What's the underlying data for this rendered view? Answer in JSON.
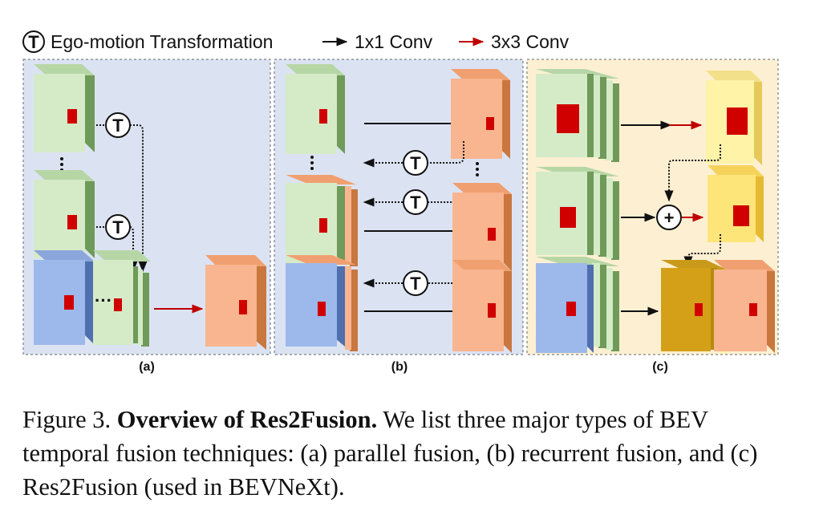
{
  "legend": {
    "t_symbol": "T",
    "ego_motion": "Ego-motion Transformation",
    "conv1x1": "1x1 Conv",
    "conv3x3": "3x3 Conv"
  },
  "panels": {
    "a": "(a)",
    "b": "(b)",
    "c": "(c)"
  },
  "colors": {
    "panel_blue_bg": "#dbe3f3",
    "panel_orange_bg": "#fdf0d2",
    "green_face": "#d5ebc8",
    "green_side": "#6f9a59",
    "orange_face": "#f9b58f",
    "orange_side": "#c9773f",
    "blue_face": "#9db8ea",
    "blue_side": "#4f6fae",
    "yellow_light": "#fff3a8",
    "yellow_mid": "#fde57a",
    "gold": "#d4a017",
    "red": "#d10000"
  },
  "icons": {
    "t_node": "circled-t-icon",
    "plus_node": "circled-plus-icon",
    "vertical_ellipsis": "vertical-ellipsis-icon",
    "horizontal_ellipsis": "horizontal-ellipsis-icon"
  },
  "caption": {
    "prefix": "Figure 3. ",
    "title": "Overview of Res2Fusion.",
    "body": " We list three major types of BEV temporal fusion techniques: (a) parallel fusion, (b) recurrent fusion, and (c) Res2Fusion (used in BEVNeXt)."
  }
}
